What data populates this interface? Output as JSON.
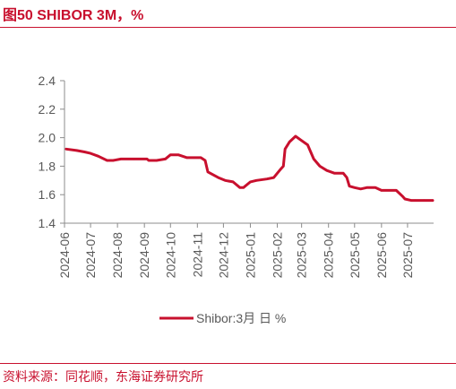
{
  "header": {
    "title": "图50  SHIBOR 3M，%"
  },
  "footer": {
    "source": "资料来源：同花顺，东海证券研究所"
  },
  "chart_data": {
    "type": "line",
    "title": "图50  SHIBOR 3M，%",
    "xlabel": "",
    "ylabel": "",
    "ylim": [
      1.4,
      2.4
    ],
    "yticks": [
      "1.4",
      "1.6",
      "1.8",
      "2.0",
      "2.2",
      "2.4"
    ],
    "xticks": [
      "2024-06",
      "2024-07",
      "2024-08",
      "2024-09",
      "2024-10",
      "2024-11",
      "2024-12",
      "2025-01",
      "2025-02",
      "2025-03",
      "2025-04",
      "2025-05",
      "2025-06",
      "2025-07"
    ],
    "grid": false,
    "legend_position": "bottom",
    "series": [
      {
        "name": "Shibor:3月 日 %",
        "color": "#c8102e",
        "points": [
          [
            "2024-06-03",
            1.92
          ],
          [
            "2024-06-15",
            1.91
          ],
          [
            "2024-06-24",
            1.9
          ],
          [
            "2024-07-01",
            1.89
          ],
          [
            "2024-07-10",
            1.87
          ],
          [
            "2024-07-20",
            1.84
          ],
          [
            "2024-07-27",
            1.84
          ],
          [
            "2024-08-05",
            1.85
          ],
          [
            "2024-08-20",
            1.85
          ],
          [
            "2024-09-01",
            1.85
          ],
          [
            "2024-09-04",
            1.85
          ],
          [
            "2024-09-06",
            1.84
          ],
          [
            "2024-09-15",
            1.84
          ],
          [
            "2024-09-25",
            1.85
          ],
          [
            "2024-10-01",
            1.88
          ],
          [
            "2024-10-10",
            1.88
          ],
          [
            "2024-10-20",
            1.86
          ],
          [
            "2024-10-28",
            1.86
          ],
          [
            "2024-11-05",
            1.86
          ],
          [
            "2024-11-10",
            1.84
          ],
          [
            "2024-11-13",
            1.76
          ],
          [
            "2024-11-25",
            1.72
          ],
          [
            "2024-12-03",
            1.7
          ],
          [
            "2024-12-12",
            1.69
          ],
          [
            "2024-12-20",
            1.65
          ],
          [
            "2024-12-24",
            1.65
          ],
          [
            "2025-01-01",
            1.69
          ],
          [
            "2025-01-08",
            1.7
          ],
          [
            "2025-01-20",
            1.71
          ],
          [
            "2025-01-28",
            1.72
          ],
          [
            "2025-02-05",
            1.78
          ],
          [
            "2025-02-08",
            1.8
          ],
          [
            "2025-02-10",
            1.92
          ],
          [
            "2025-02-15",
            1.97
          ],
          [
            "2025-02-22",
            2.01
          ],
          [
            "2025-03-01",
            1.98
          ],
          [
            "2025-03-08",
            1.95
          ],
          [
            "2025-03-15",
            1.85
          ],
          [
            "2025-03-22",
            1.8
          ],
          [
            "2025-03-30",
            1.77
          ],
          [
            "2025-04-08",
            1.75
          ],
          [
            "2025-04-18",
            1.75
          ],
          [
            "2025-04-22",
            1.72
          ],
          [
            "2025-04-25",
            1.66
          ],
          [
            "2025-05-01",
            1.65
          ],
          [
            "2025-05-08",
            1.64
          ],
          [
            "2025-05-15",
            1.65
          ],
          [
            "2025-05-25",
            1.65
          ],
          [
            "2025-06-01",
            1.63
          ],
          [
            "2025-06-18",
            1.63
          ],
          [
            "2025-06-25",
            1.59
          ],
          [
            "2025-06-28",
            1.57
          ],
          [
            "2025-07-05",
            1.56
          ],
          [
            "2025-07-10",
            1.56
          ],
          [
            "2025-07-20",
            1.56
          ],
          [
            "2025-07-30",
            1.56
          ]
        ]
      }
    ]
  }
}
